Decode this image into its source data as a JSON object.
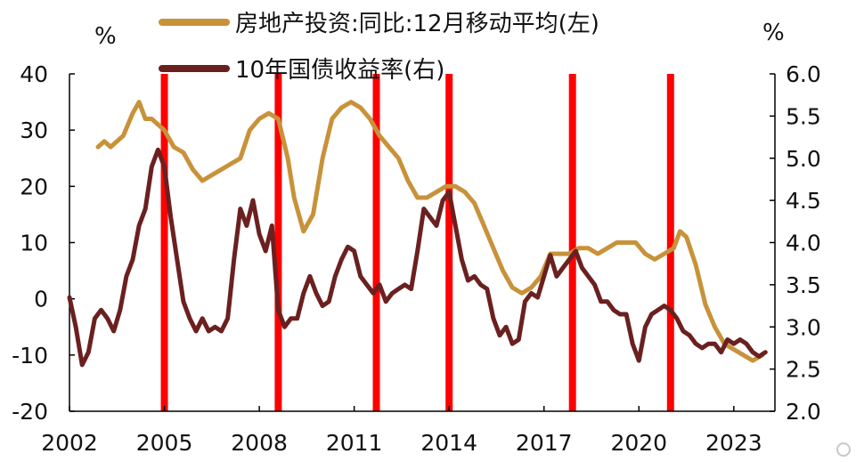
{
  "chart_data": {
    "type": "line",
    "title": "",
    "legend": [
      {
        "name": "房地产投资:同比:12月移动平均(左)",
        "color": "#c8923a"
      },
      {
        "name": "10年国债收益率(右)",
        "color": "#6b2020"
      }
    ],
    "left_axis": {
      "unit": "%",
      "min": -20,
      "max": 40,
      "ticks": [
        40,
        30,
        20,
        10,
        0,
        -10,
        -20
      ]
    },
    "right_axis": {
      "unit": "%",
      "min": 2.0,
      "max": 6.0,
      "ticks": [
        "6.0",
        "5.5",
        "5.0",
        "4.5",
        "4.0",
        "3.5",
        "3.0",
        "2.5",
        "2.0"
      ]
    },
    "x_axis": {
      "min": 2002.0,
      "max": 2024.3,
      "ticks": [
        "2002",
        "2005",
        "2008",
        "2011",
        "2014",
        "2017",
        "2020",
        "2023"
      ]
    },
    "highlight_years": [
      2005.0,
      2008.6,
      2011.7,
      2014.0,
      2017.9,
      2021.0
    ],
    "series": [
      {
        "name": "房地产投资:同比:12月移动平均",
        "axis": "left",
        "color": "#c8923a",
        "x": [
          2002.9,
          2003.1,
          2003.3,
          2003.5,
          2003.7,
          2004.0,
          2004.2,
          2004.4,
          2004.6,
          2004.8,
          2005.0,
          2005.3,
          2005.6,
          2005.9,
          2006.2,
          2006.5,
          2006.8,
          2007.1,
          2007.4,
          2007.7,
          2008.0,
          2008.3,
          2008.6,
          2008.9,
          2009.1,
          2009.4,
          2009.7,
          2010.0,
          2010.3,
          2010.6,
          2010.9,
          2011.2,
          2011.5,
          2011.8,
          2012.1,
          2012.4,
          2012.7,
          2013.0,
          2013.3,
          2013.6,
          2013.9,
          2014.2,
          2014.5,
          2014.8,
          2015.1,
          2015.4,
          2015.7,
          2016.0,
          2016.3,
          2016.6,
          2016.9,
          2017.2,
          2017.5,
          2017.8,
          2018.1,
          2018.4,
          2018.7,
          2019.0,
          2019.3,
          2019.6,
          2019.9,
          2020.2,
          2020.5,
          2020.8,
          2021.1,
          2021.3,
          2021.5,
          2021.8,
          2022.1,
          2022.4,
          2022.7,
          2023.0,
          2023.3,
          2023.6,
          2023.9
        ],
        "values": [
          27,
          28,
          27,
          28,
          29,
          33,
          35,
          32,
          32,
          31,
          30,
          27,
          26,
          23,
          21,
          22,
          23,
          24,
          25,
          30,
          32,
          33,
          32,
          25,
          18,
          12,
          15,
          25,
          32,
          34,
          35,
          34,
          32,
          29,
          27,
          25,
          21,
          18,
          18,
          19,
          20,
          20,
          19,
          17,
          13,
          9,
          5,
          2,
          1,
          2,
          4,
          8,
          8,
          8,
          9,
          9,
          8,
          9,
          10,
          10,
          10,
          8,
          7,
          8,
          9,
          12,
          11,
          6,
          -1,
          -5,
          -8,
          -9,
          -10,
          -11,
          -10
        ]
      },
      {
        "name": "10年国债收益率",
        "axis": "right",
        "color": "#6b2020",
        "x": [
          2002.0,
          2002.2,
          2002.4,
          2002.6,
          2002.8,
          2003.0,
          2003.2,
          2003.4,
          2003.6,
          2003.8,
          2004.0,
          2004.2,
          2004.4,
          2004.6,
          2004.8,
          2005.0,
          2005.2,
          2005.4,
          2005.6,
          2005.8,
          2006.0,
          2006.2,
          2006.4,
          2006.6,
          2006.8,
          2007.0,
          2007.2,
          2007.4,
          2007.6,
          2007.8,
          2008.0,
          2008.2,
          2008.4,
          2008.6,
          2008.8,
          2009.0,
          2009.2,
          2009.4,
          2009.6,
          2009.8,
          2010.0,
          2010.2,
          2010.4,
          2010.6,
          2010.8,
          2011.0,
          2011.2,
          2011.4,
          2011.6,
          2011.8,
          2012.0,
          2012.2,
          2012.4,
          2012.6,
          2012.8,
          2013.0,
          2013.2,
          2013.4,
          2013.6,
          2013.8,
          2014.0,
          2014.2,
          2014.4,
          2014.6,
          2014.8,
          2015.0,
          2015.2,
          2015.4,
          2015.6,
          2015.8,
          2016.0,
          2016.2,
          2016.4,
          2016.6,
          2016.8,
          2017.0,
          2017.2,
          2017.4,
          2017.6,
          2017.8,
          2018.0,
          2018.2,
          2018.4,
          2018.6,
          2018.8,
          2019.0,
          2019.2,
          2019.4,
          2019.6,
          2019.8,
          2020.0,
          2020.2,
          2020.4,
          2020.6,
          2020.8,
          2021.0,
          2021.2,
          2021.4,
          2021.6,
          2021.8,
          2022.0,
          2022.2,
          2022.4,
          2022.6,
          2022.8,
          2023.0,
          2023.2,
          2023.4,
          2023.6,
          2023.8,
          2024.0
        ],
        "values": [
          3.35,
          3.0,
          2.55,
          2.7,
          3.1,
          3.2,
          3.1,
          2.95,
          3.2,
          3.6,
          3.8,
          4.2,
          4.4,
          4.9,
          5.1,
          4.9,
          4.3,
          3.8,
          3.3,
          3.1,
          2.95,
          3.1,
          2.95,
          3.0,
          2.95,
          3.1,
          3.8,
          4.4,
          4.2,
          4.5,
          4.1,
          3.9,
          4.2,
          3.2,
          3.0,
          3.1,
          3.1,
          3.4,
          3.6,
          3.4,
          3.25,
          3.3,
          3.6,
          3.8,
          3.95,
          3.9,
          3.6,
          3.5,
          3.4,
          3.5,
          3.3,
          3.4,
          3.45,
          3.5,
          3.45,
          3.9,
          4.4,
          4.3,
          4.2,
          4.5,
          4.6,
          4.2,
          3.8,
          3.55,
          3.6,
          3.5,
          3.45,
          3.1,
          2.9,
          3.0,
          2.8,
          2.85,
          3.3,
          3.4,
          3.35,
          3.6,
          3.85,
          3.6,
          3.7,
          3.8,
          3.9,
          3.7,
          3.6,
          3.5,
          3.3,
          3.3,
          3.2,
          3.15,
          3.15,
          2.8,
          2.6,
          3.0,
          3.15,
          3.2,
          3.25,
          3.2,
          3.1,
          2.95,
          2.9,
          2.8,
          2.75,
          2.8,
          2.8,
          2.7,
          2.85,
          2.8,
          2.85,
          2.8,
          2.7,
          2.65,
          2.7
        ]
      }
    ]
  }
}
